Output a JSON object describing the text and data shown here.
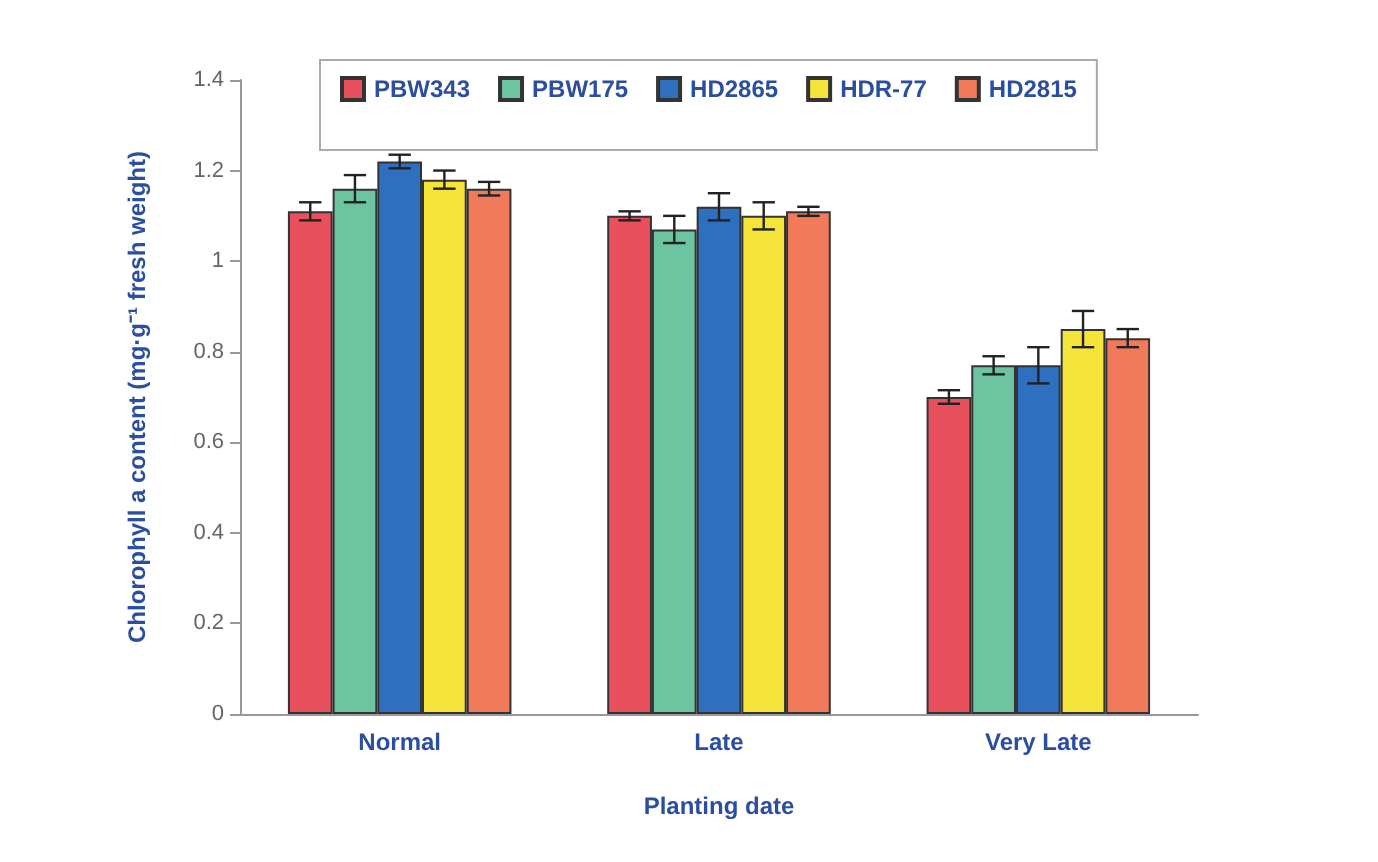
{
  "chart_data": {
    "type": "bar",
    "xlabel": "Planting date",
    "ylabel": "Chlorophyll a content (mg·g⁻¹ fresh weight)",
    "categories": [
      "Normal",
      "Late",
      "Very Late"
    ],
    "series": [
      {
        "name": "PBW343",
        "color": "#e8505e",
        "values": [
          1.11,
          1.1,
          0.7
        ],
        "errors": [
          0.02,
          0.01,
          0.015
        ]
      },
      {
        "name": "PBW175",
        "color": "#6cc4a0",
        "values": [
          1.16,
          1.07,
          0.77
        ],
        "errors": [
          0.03,
          0.03,
          0.02
        ]
      },
      {
        "name": "HD2865",
        "color": "#2f6fbf",
        "values": [
          1.22,
          1.12,
          0.77
        ],
        "errors": [
          0.015,
          0.03,
          0.04
        ]
      },
      {
        "name": "HDR-77",
        "color": "#f5e53a",
        "values": [
          1.18,
          1.1,
          0.85
        ],
        "errors": [
          0.02,
          0.03,
          0.04
        ]
      },
      {
        "name": "HD2815",
        "color": "#f07a5a",
        "values": [
          1.16,
          1.11,
          0.83
        ],
        "errors": [
          0.015,
          0.01,
          0.02
        ]
      }
    ],
    "ylim": [
      0,
      1.4
    ],
    "yticks": [
      0,
      0.2,
      0.4,
      0.6,
      0.8,
      1,
      1.2,
      1.4
    ],
    "grid": false,
    "legend": "top"
  }
}
